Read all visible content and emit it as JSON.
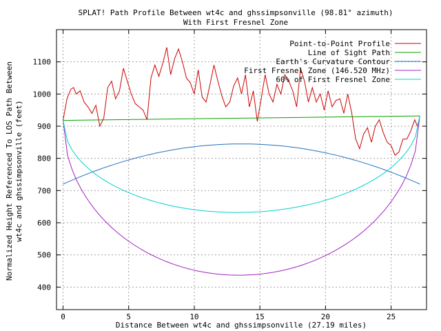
{
  "chart_data": {
    "type": "line",
    "title_line1": "SPLAT! Path Profile Between wt4c and ghssimpsonville (98.81° azimuth)",
    "title_line2": "With First Fresnel Zone",
    "xlabel": "Distance Between wt4c and ghssimpsonville (27.19 miles)",
    "ylabel_line1": "Normalized Height Referenced To LOS Path Between",
    "ylabel_line2": "wt4c and ghssimpsonville (feet)",
    "xlim": [
      -0.5,
      27.7
    ],
    "ylim": [
      330,
      1200
    ],
    "x_ticks": [
      0,
      5,
      10,
      15,
      20,
      25
    ],
    "y_ticks": [
      400,
      500,
      600,
      700,
      800,
      900,
      1000,
      1100
    ],
    "grid": true,
    "legend_position": "top-right",
    "series": [
      {
        "name": "Point-to-Point Profile",
        "color": "#cc0000",
        "x": [
          0,
          0.3,
          0.6,
          0.8,
          1.0,
          1.3,
          1.6,
          1.9,
          2.2,
          2.5,
          2.8,
          3.1,
          3.4,
          3.7,
          4.0,
          4.3,
          4.6,
          4.9,
          5.2,
          5.5,
          5.8,
          6.1,
          6.4,
          6.7,
          7.0,
          7.3,
          7.6,
          7.9,
          8.2,
          8.5,
          8.8,
          9.1,
          9.4,
          9.7,
          10.0,
          10.3,
          10.6,
          10.9,
          11.2,
          11.5,
          11.8,
          12.1,
          12.4,
          12.7,
          13.0,
          13.3,
          13.6,
          13.9,
          14.2,
          14.5,
          14.8,
          15.1,
          15.4,
          15.7,
          16.0,
          16.3,
          16.6,
          16.9,
          17.2,
          17.5,
          17.8,
          18.1,
          18.4,
          18.7,
          19.0,
          19.3,
          19.6,
          19.9,
          20.2,
          20.5,
          20.8,
          21.1,
          21.4,
          21.7,
          22.0,
          22.3,
          22.6,
          22.9,
          23.2,
          23.5,
          23.8,
          24.1,
          24.4,
          24.7,
          25.0,
          25.3,
          25.6,
          25.9,
          26.2,
          26.5,
          26.8,
          27.0,
          27.19
        ],
        "values": [
          918,
          985,
          1015,
          1020,
          1000,
          1010,
          975,
          960,
          940,
          965,
          900,
          925,
          1020,
          1040,
          985,
          1010,
          1080,
          1040,
          1000,
          970,
          960,
          950,
          920,
          1050,
          1090,
          1055,
          1095,
          1145,
          1060,
          1110,
          1140,
          1100,
          1050,
          1035,
          1000,
          1075,
          990,
          975,
          1030,
          1090,
          1040,
          995,
          960,
          975,
          1025,
          1050,
          1000,
          1060,
          960,
          1010,
          915,
          985,
          1060,
          1000,
          975,
          1030,
          1000,
          1060,
          1040,
          1010,
          960,
          1080,
          1040,
          975,
          1020,
          975,
          1000,
          950,
          1010,
          960,
          980,
          985,
          940,
          1000,
          940,
          860,
          830,
          875,
          895,
          850,
          900,
          920,
          880,
          850,
          840,
          810,
          820,
          860,
          860,
          885,
          920,
          900,
          930
        ]
      },
      {
        "name": "Line of Sight Path",
        "color": "#00a000",
        "x": [
          0,
          27.19
        ],
        "values": [
          918,
          932
        ]
      },
      {
        "name": "Earth's Curvature Contour",
        "color": "#1f6fbf",
        "x": [
          0,
          27.19
        ],
        "values": [
          720,
          720
        ],
        "peak": 845
      },
      {
        "name": "First Fresnel Zone (146.520 MHz)",
        "color": "#a020c0",
        "x": [
          0,
          27.19
        ],
        "values": [
          918,
          932
        ],
        "depth": 488
      },
      {
        "name": "60% of First Fresnel Zone",
        "color": "#00d0d0",
        "x": [
          0,
          27.19
        ],
        "values": [
          918,
          932
        ],
        "depth": 293
      }
    ]
  }
}
